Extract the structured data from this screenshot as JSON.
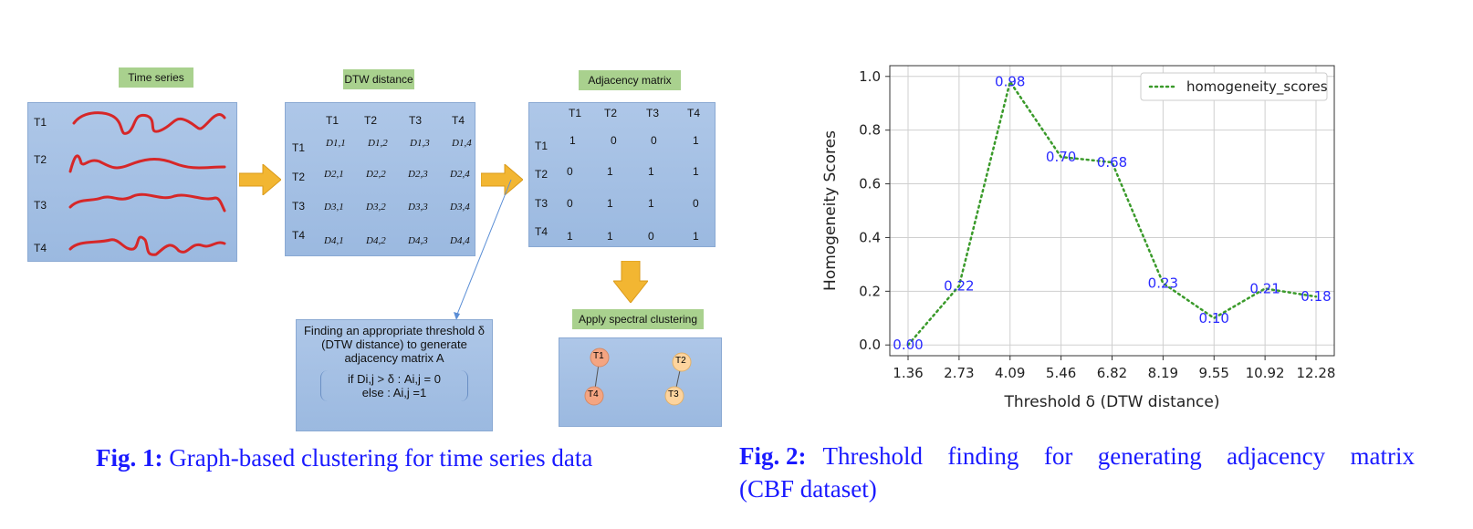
{
  "fig1": {
    "labels": {
      "time_series": "Time series",
      "dtw_distance": "DTW distance",
      "adjacency_matrix": "Adjacency matrix",
      "spectral": "Apply spectral clustering"
    },
    "series_names": [
      "T1",
      "T2",
      "T3",
      "T4"
    ],
    "dtw_cells": [
      [
        "D1,1",
        "D1,2",
        "D1,3",
        "D1,4"
      ],
      [
        "D2,1",
        "D2,2",
        "D2,3",
        "D2,4"
      ],
      [
        "D3,1",
        "D3,2",
        "D3,3",
        "D3,4"
      ],
      [
        "D4,1",
        "D4,2",
        "D4,3",
        "D4,4"
      ]
    ],
    "adjacency": [
      [
        "1",
        "0",
        "0",
        "1"
      ],
      [
        "0",
        "1",
        "1",
        "1"
      ],
      [
        "0",
        "1",
        "1",
        "0"
      ],
      [
        "1",
        "1",
        "0",
        "1"
      ]
    ],
    "threshold_box": {
      "line1": "Finding an appropriate  threshold δ",
      "line2": "(DTW distance) to generate",
      "line3": "adjacency matrix A",
      "rule1": "if  Di,j  >  δ :   Ai,j  = 0",
      "rule2": "else :  Ai,j  =1"
    },
    "clusters": [
      "T1",
      "T4",
      "T2",
      "T3"
    ],
    "caption_bold": "Fig. 1:",
    "caption_text": "Graph-based clustering for time series data"
  },
  "fig2": {
    "caption_bold": "Fig. 2:",
    "caption_text_line1": "Threshold finding for generating adjacency matrix",
    "caption_text_line2": "(CBF dataset)"
  },
  "chart_data": {
    "type": "line",
    "x_tick_labels": [
      "1.36",
      "2.73",
      "4.09",
      "5.46",
      "6.82",
      "8.19",
      "9.55",
      "10.92",
      "12.28"
    ],
    "series": [
      {
        "name": "homogeneity_scores",
        "values": [
          0.0,
          0.22,
          0.98,
          0.7,
          0.68,
          0.23,
          0.1,
          0.21,
          0.18
        ]
      }
    ],
    "data_labels": [
      "0.00",
      "0.22",
      "0.98",
      "0.70",
      "0.68",
      "0.23",
      "0.10",
      "0.21",
      "0.18"
    ],
    "y_ticks": [
      "0.0",
      "0.2",
      "0.4",
      "0.6",
      "0.8",
      "1.0"
    ],
    "xlabel": "Threshold δ (DTW distance)",
    "ylabel": "Homogeneity  Scores",
    "ylim": [
      -0.04,
      1.04
    ],
    "grid": true,
    "legend_position": "top-right",
    "colors": {
      "line": "#3a9a2a",
      "labels": "#2a2aff"
    }
  }
}
